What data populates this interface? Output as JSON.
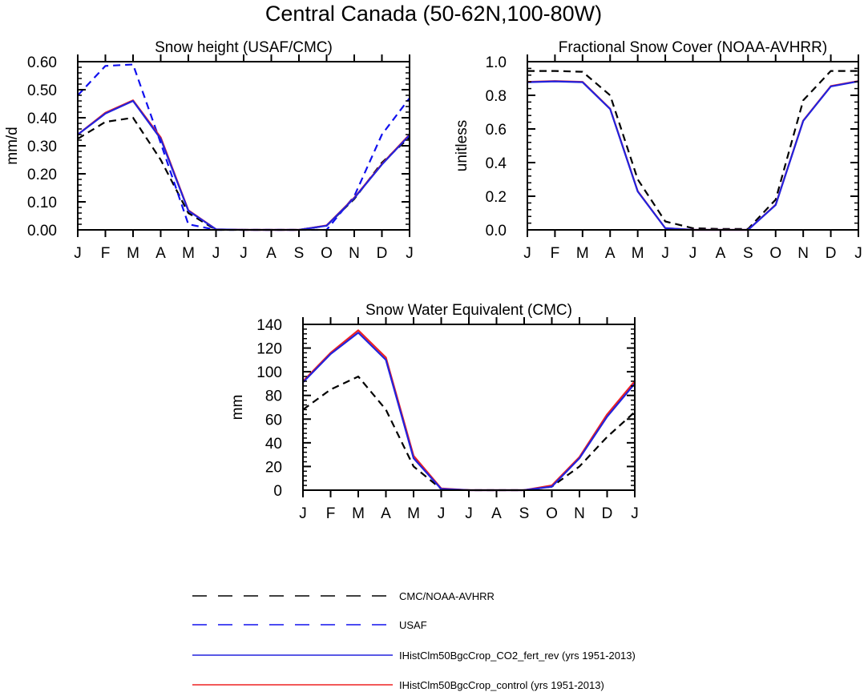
{
  "figure": {
    "title": "Central Canada (50-62N,100-80W)"
  },
  "colors": {
    "cmc_noaa": "#000000",
    "usaf": "#1010ee",
    "co2_fert_rev": "#2222dd",
    "control": "#ee2222"
  },
  "legend": {
    "entries": [
      {
        "label": "CMC/NOAA-AVHRR",
        "color": "#000000",
        "style": "dashed"
      },
      {
        "label": "USAF",
        "color": "#1010ee",
        "style": "dashed"
      },
      {
        "label": "IHistClm50BgcCrop_CO2_fert_rev (yrs 1951-2013)",
        "color": "#2222dd",
        "style": "solid"
      },
      {
        "label": "IHistClm50BgcCrop_control (yrs 1951-2013)",
        "color": "#ee2222",
        "style": "solid"
      }
    ]
  },
  "chart_data": [
    {
      "type": "line",
      "title": "Snow height (USAF/CMC)",
      "xlabel": "",
      "ylabel": "mm/d",
      "categories": [
        "J",
        "F",
        "M",
        "A",
        "M",
        "J",
        "J",
        "A",
        "S",
        "O",
        "N",
        "D",
        "J"
      ],
      "ylim": [
        0,
        0.6
      ],
      "yticks": [
        "0.00",
        "0.10",
        "0.20",
        "0.30",
        "0.40",
        "0.50",
        "0.60"
      ],
      "grid": false,
      "series": [
        {
          "name": "CMC/NOAA-AVHRR",
          "values": [
            0.325,
            0.385,
            0.4,
            0.25,
            0.06,
            0.0,
            0.0,
            0.0,
            0.0,
            0.015,
            0.11,
            0.24,
            0.33
          ]
        },
        {
          "name": "USAF",
          "values": [
            0.48,
            0.585,
            0.59,
            0.31,
            0.02,
            0.0,
            0.0,
            0.0,
            0.0,
            0.0,
            0.12,
            0.34,
            0.47
          ]
        },
        {
          "name": "IHistClm50BgcCrop_control (yrs 1951-2013)",
          "values": [
            0.34,
            0.418,
            0.462,
            0.33,
            0.07,
            0.002,
            0.0,
            0.0,
            0.0,
            0.016,
            0.115,
            0.235,
            0.34
          ]
        },
        {
          "name": "IHistClm50BgcCrop_CO2_fert_rev (yrs 1951-2013)",
          "values": [
            0.34,
            0.415,
            0.46,
            0.325,
            0.068,
            0.002,
            0.0,
            0.0,
            0.0,
            0.015,
            0.113,
            0.233,
            0.338
          ]
        }
      ]
    },
    {
      "type": "line",
      "title": "Fractional Snow Cover (NOAA-AVHRR)",
      "xlabel": "",
      "ylabel": "unitless",
      "categories": [
        "J",
        "F",
        "M",
        "A",
        "M",
        "J",
        "J",
        "A",
        "S",
        "O",
        "N",
        "D",
        "J"
      ],
      "ylim": [
        0,
        1.0
      ],
      "yticks": [
        "0.0",
        "0.2",
        "0.4",
        "0.6",
        "0.8",
        "1.0"
      ],
      "grid": false,
      "series": [
        {
          "name": "CMC/NOAA-AVHRR",
          "values": [
            0.945,
            0.945,
            0.94,
            0.8,
            0.3,
            0.05,
            0.01,
            0.005,
            0.005,
            0.18,
            0.77,
            0.945,
            0.945
          ]
        },
        {
          "name": "IHistClm50BgcCrop_control (yrs 1951-2013)",
          "values": [
            0.88,
            0.885,
            0.88,
            0.72,
            0.23,
            0.01,
            0.0,
            0.0,
            0.0,
            0.15,
            0.65,
            0.855,
            0.885
          ]
        },
        {
          "name": "IHistClm50BgcCrop_CO2_fert_rev (yrs 1951-2013)",
          "values": [
            0.878,
            0.883,
            0.878,
            0.718,
            0.228,
            0.01,
            0.0,
            0.0,
            0.0,
            0.148,
            0.648,
            0.853,
            0.883
          ]
        }
      ]
    },
    {
      "type": "line",
      "title": "Snow Water Equivalent (CMC)",
      "xlabel": "",
      "ylabel": "mm",
      "categories": [
        "J",
        "F",
        "M",
        "A",
        "M",
        "J",
        "J",
        "A",
        "S",
        "O",
        "N",
        "D",
        "J"
      ],
      "ylim": [
        0,
        140
      ],
      "yticks": [
        "0",
        "20",
        "40",
        "60",
        "80",
        "100",
        "120",
        "140"
      ],
      "grid": false,
      "series": [
        {
          "name": "CMC/NOAA-AVHRR",
          "values": [
            68,
            85,
            96,
            68,
            20,
            1,
            0,
            0,
            0,
            3,
            20,
            45,
            66
          ]
        },
        {
          "name": "IHistClm50BgcCrop_control (yrs 1951-2013)",
          "values": [
            92,
            116,
            135,
            112,
            29,
            1.5,
            0,
            0,
            0,
            4,
            28,
            64,
            92
          ]
        },
        {
          "name": "IHistClm50BgcCrop_CO2_fert_rev (yrs 1951-2013)",
          "values": [
            91,
            115,
            133,
            110,
            27,
            1,
            0,
            0,
            0,
            3,
            27,
            62,
            90
          ]
        }
      ]
    }
  ]
}
